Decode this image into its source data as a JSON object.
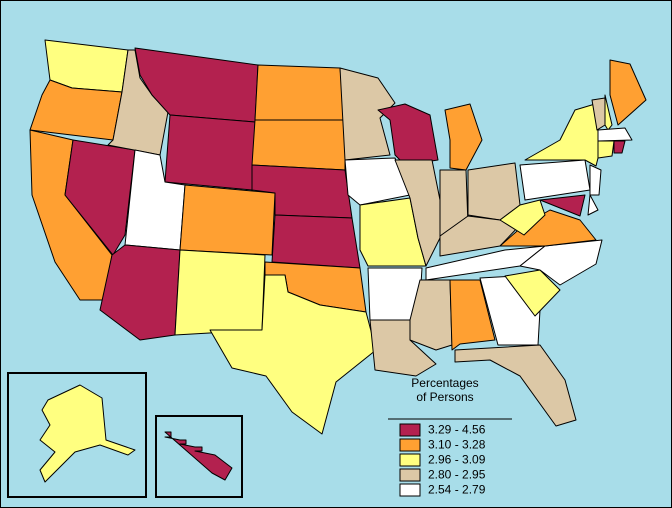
{
  "map": {
    "legend": {
      "title": [
        "Percentages",
        "of Persons"
      ],
      "items": [
        {
          "label": "3.29 - 4.56",
          "color": "#b3214f"
        },
        {
          "label": "3.10 - 3.28",
          "color": "#ffa032"
        },
        {
          "label": "2.96 - 3.09",
          "color": "#ffff80"
        },
        {
          "label": "2.80 - 2.95",
          "color": "#dcc8a6"
        },
        {
          "label": "2.54 - 2.79",
          "color": "#ffffff"
        }
      ]
    },
    "state_classes": [
      2,
      1,
      1,
      0,
      3,
      0,
      0,
      4,
      0,
      1,
      2,
      1,
      1,
      0,
      0,
      1,
      2,
      3,
      4,
      2,
      4,
      3,
      0,
      3,
      1,
      3,
      3,
      3,
      4,
      3,
      1,
      4,
      3,
      2,
      4,
      1,
      2,
      4,
      2,
      0,
      4,
      4,
      3,
      2,
      1,
      4,
      2,
      0,
      2,
      0
    ]
  }
}
